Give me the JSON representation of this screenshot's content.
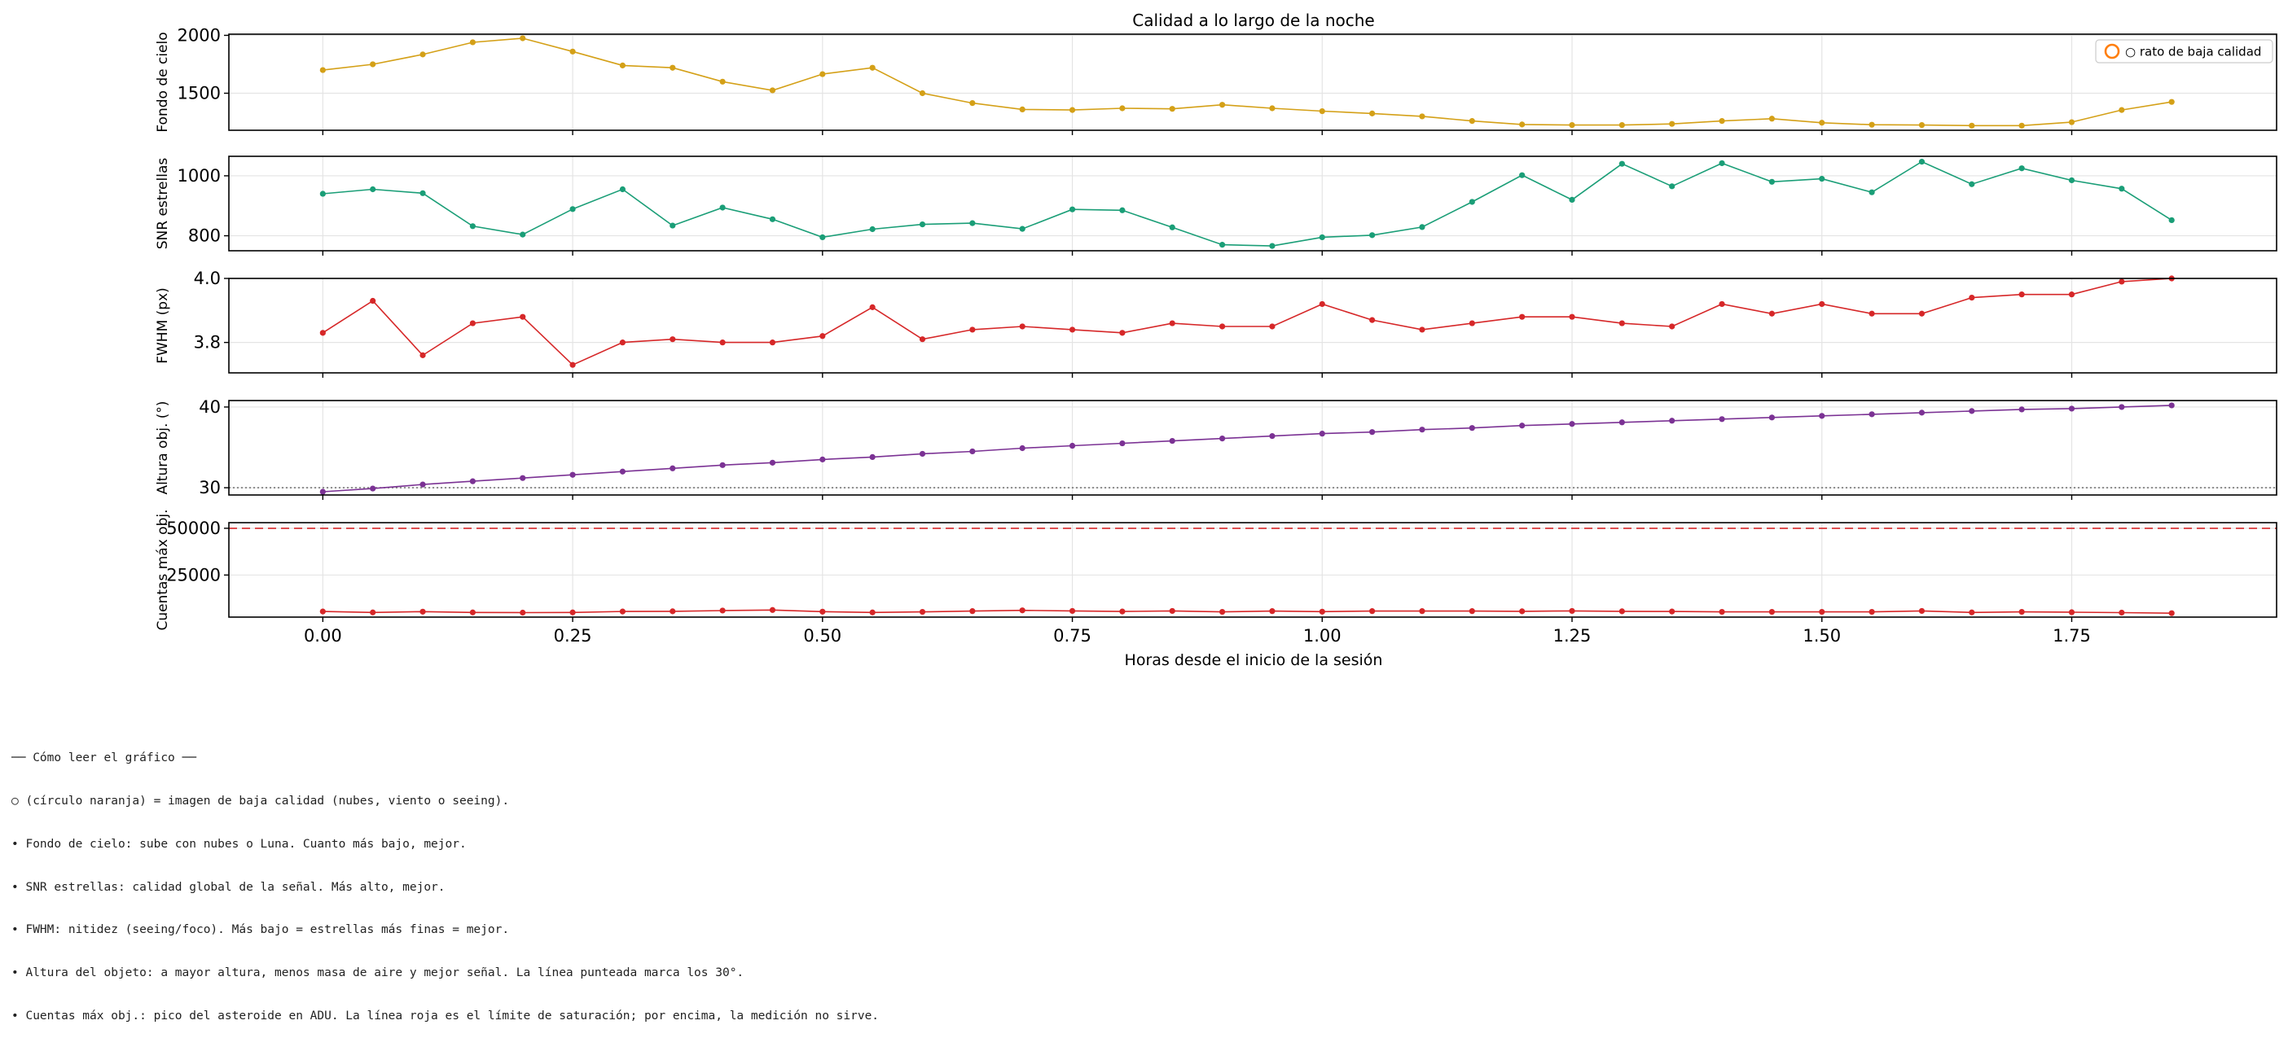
{
  "chart_data": {
    "type": "line",
    "title": "Calidad a lo largo de la noche",
    "xlabel": "Horas desde el inicio de la sesión",
    "xlim": [
      -0.094,
      1.955
    ],
    "xticks": [
      0.0,
      0.25,
      0.5,
      0.75,
      1.0,
      1.25,
      1.5,
      1.75
    ],
    "xtick_labels": [
      "0.00",
      "0.25",
      "0.50",
      "0.75",
      "1.00",
      "1.25",
      "1.50",
      "1.75"
    ],
    "grid": true,
    "legend": {
      "label": "○ rato de baja calidad",
      "placement": "top-right",
      "marker_color": "#ff7f0e"
    },
    "x": [
      0.0,
      0.05,
      0.1,
      0.15,
      0.2,
      0.25,
      0.3,
      0.35,
      0.4,
      0.45,
      0.5,
      0.55,
      0.6,
      0.65,
      0.7,
      0.75,
      0.8,
      0.85,
      0.9,
      0.95,
      1.0,
      1.05,
      1.1,
      1.15,
      1.2,
      1.25,
      1.3,
      1.35,
      1.4,
      1.45,
      1.5,
      1.55,
      1.6,
      1.65,
      1.7,
      1.75,
      1.8,
      1.85
    ],
    "panels": [
      {
        "ylabel": "Fondo de cielo",
        "color": "#d4a017",
        "ylim": [
          1180,
          2010
        ],
        "yticks": [
          1500,
          2000
        ],
        "ytick_labels": [
          "1500",
          "2000"
        ],
        "values": [
          1700,
          1750,
          1835,
          1940,
          1975,
          1860,
          1740,
          1720,
          1600,
          1525,
          1665,
          1720,
          1500,
          1415,
          1360,
          1355,
          1370,
          1365,
          1400,
          1370,
          1345,
          1325,
          1300,
          1260,
          1230,
          1225,
          1225,
          1235,
          1260,
          1280,
          1245,
          1228,
          1225,
          1220,
          1220,
          1250,
          1355,
          1425
        ]
      },
      {
        "ylabel": "SNR estrellas",
        "color": "#1a9e77",
        "ylim": [
          750,
          1065
        ],
        "yticks": [
          800,
          1000
        ],
        "ytick_labels": [
          "800",
          "1000"
        ],
        "values": [
          940,
          955,
          942,
          832,
          804,
          889,
          955,
          834,
          894,
          855,
          795,
          822,
          838,
          842,
          823,
          888,
          885,
          828,
          770,
          766,
          795,
          802,
          829,
          913,
          1002,
          920,
          1040,
          965,
          1042,
          980,
          990,
          945,
          1047,
          972,
          1025,
          985,
          957,
          852
        ]
      },
      {
        "ylabel": "FWHM (px)",
        "color": "#d62728",
        "ylim": [
          3.705,
          4.0
        ],
        "yticks": [
          3.8,
          4.0
        ],
        "ytick_labels": [
          "3.8",
          "4.0"
        ],
        "values": [
          3.83,
          3.93,
          3.76,
          3.86,
          3.88,
          3.73,
          3.8,
          3.81,
          3.8,
          3.8,
          3.82,
          3.91,
          3.81,
          3.84,
          3.85,
          3.84,
          3.83,
          3.86,
          3.85,
          3.85,
          3.92,
          3.87,
          3.84,
          3.86,
          3.88,
          3.88,
          3.86,
          3.85,
          3.92,
          3.89,
          3.92,
          3.89,
          3.89,
          3.94,
          3.95,
          3.95,
          3.99,
          4.0
        ]
      },
      {
        "ylabel": "Altura obj. (°)",
        "color": "#7b3294",
        "ylim": [
          29.1,
          40.8
        ],
        "yticks": [
          30,
          40
        ],
        "ytick_labels": [
          "30",
          "40"
        ],
        "hline": {
          "value": 30,
          "style": "dotted",
          "color": "#777777"
        },
        "values": [
          29.5,
          29.9,
          30.4,
          30.8,
          31.2,
          31.6,
          32.0,
          32.4,
          32.8,
          33.1,
          33.5,
          33.8,
          34.2,
          34.5,
          34.9,
          35.2,
          35.5,
          35.8,
          36.1,
          36.4,
          36.7,
          36.9,
          37.2,
          37.4,
          37.7,
          37.9,
          38.1,
          38.3,
          38.5,
          38.7,
          38.9,
          39.1,
          39.3,
          39.5,
          39.7,
          39.8,
          40.0,
          40.2
        ]
      },
      {
        "ylabel": "Cuentas máx obj.",
        "color": "#d62728",
        "ylim": [
          2500,
          53000
        ],
        "yticks": [
          25000,
          50000
        ],
        "ytick_labels": [
          "25000",
          "50000"
        ],
        "hline": {
          "value": 50000,
          "style": "dashed",
          "color": "#d62728"
        },
        "values": [
          5500,
          5000,
          5400,
          5000,
          4900,
          5000,
          5500,
          5600,
          6000,
          6300,
          5400,
          5000,
          5300,
          5700,
          6100,
          5800,
          5500,
          5800,
          5300,
          5700,
          5400,
          5700,
          5700,
          5700,
          5600,
          5800,
          5600,
          5500,
          5300,
          5300,
          5300,
          5300,
          5800,
          5000,
          5300,
          5100,
          4900,
          4600
        ]
      }
    ]
  },
  "notes": {
    "heading": "── Cómo leer el gráfico ──",
    "lines": [
      "○ (círculo naranja) = imagen de baja calidad (nubes, viento o seeing).",
      "• Fondo de cielo: sube con nubes o Luna. Cuanto más bajo, mejor.",
      "• SNR estrellas: calidad global de la señal. Más alto, mejor.",
      "• FWHM: nitidez (seeing/foco). Más bajo = estrellas más finas = mejor.",
      "• Altura del objeto: a mayor altura, menos masa de aire y mejor señal. La línea punteada marca los 30°.",
      "• Cuentas máx obj.: pico del asteroide en ADU. La línea roja es el límite de saturación; por encima, la medición no sirve."
    ]
  }
}
